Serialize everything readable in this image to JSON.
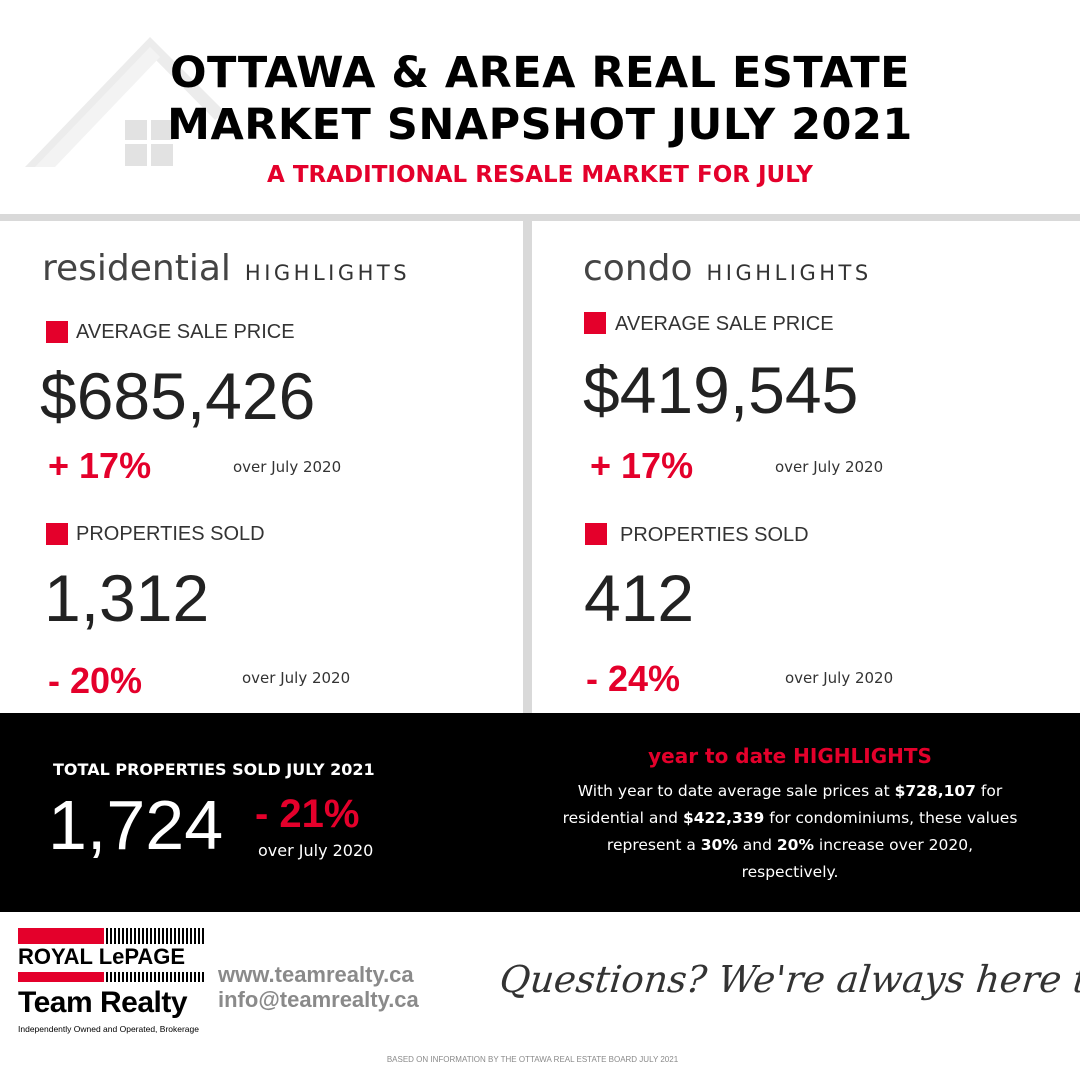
{
  "header": {
    "title_line1": "OTTAWA & AREA REAL ESTATE",
    "title_line2": "MARKET SNAPSHOT JULY 2021",
    "subtitle": "A TRADITIONAL RESALE MARKET FOR JULY",
    "background_icon": "house-outline-icon"
  },
  "residential": {
    "heading_word": "residential",
    "heading_suffix": "HIGHLIGHTS",
    "avg_price": {
      "label": "AVERAGE SALE PRICE",
      "value": "$685,426",
      "change": "+ 17%",
      "compare": "over July 2020"
    },
    "sold": {
      "label": "PROPERTIES SOLD",
      "value": "1,312",
      "change": "- 20%",
      "compare": "over July 2020"
    }
  },
  "condo": {
    "heading_word": "condo",
    "heading_suffix": "HIGHLIGHTS",
    "avg_price": {
      "label": "AVERAGE SALE PRICE",
      "value": "$419,545",
      "change": "+ 17%",
      "compare": "over July 2020"
    },
    "sold": {
      "label": "PROPERTIES SOLD",
      "value": "412",
      "change": "- 24%",
      "compare": "over July 2020"
    }
  },
  "total": {
    "label": "TOTAL PROPERTIES SOLD JULY 2021",
    "value": "1,724",
    "change": "- 21%",
    "compare": "over July 2020"
  },
  "ytd": {
    "heading": "year to date HIGHLIGHTS",
    "t1": "With year to date average sale prices at ",
    "res_price": "$728,107",
    "t2": " for residential and ",
    "condo_price": "$422,339",
    "t3": " for condominiums, these values represent a ",
    "res_pct": "30%",
    "t4": " and ",
    "condo_pct": "20%",
    "t5": " increase over 2020, respectively."
  },
  "footer": {
    "logo_line1": "ROYAL LePAGE",
    "logo_line2": "Team Realty",
    "logo_tagline": "Independently Owned and Operated, Brokerage",
    "website": "www.teamrealty.ca",
    "email": "info@teamrealty.ca",
    "tagline": "Questions? We're always here to help",
    "source_note": "BASED ON INFORMATION BY THE OTTAWA REAL ESTATE BOARD JULY 2021"
  },
  "colors": {
    "accent_red": "#e4002b",
    "divider_gray": "#d9d9d9",
    "band_black": "#000000"
  }
}
